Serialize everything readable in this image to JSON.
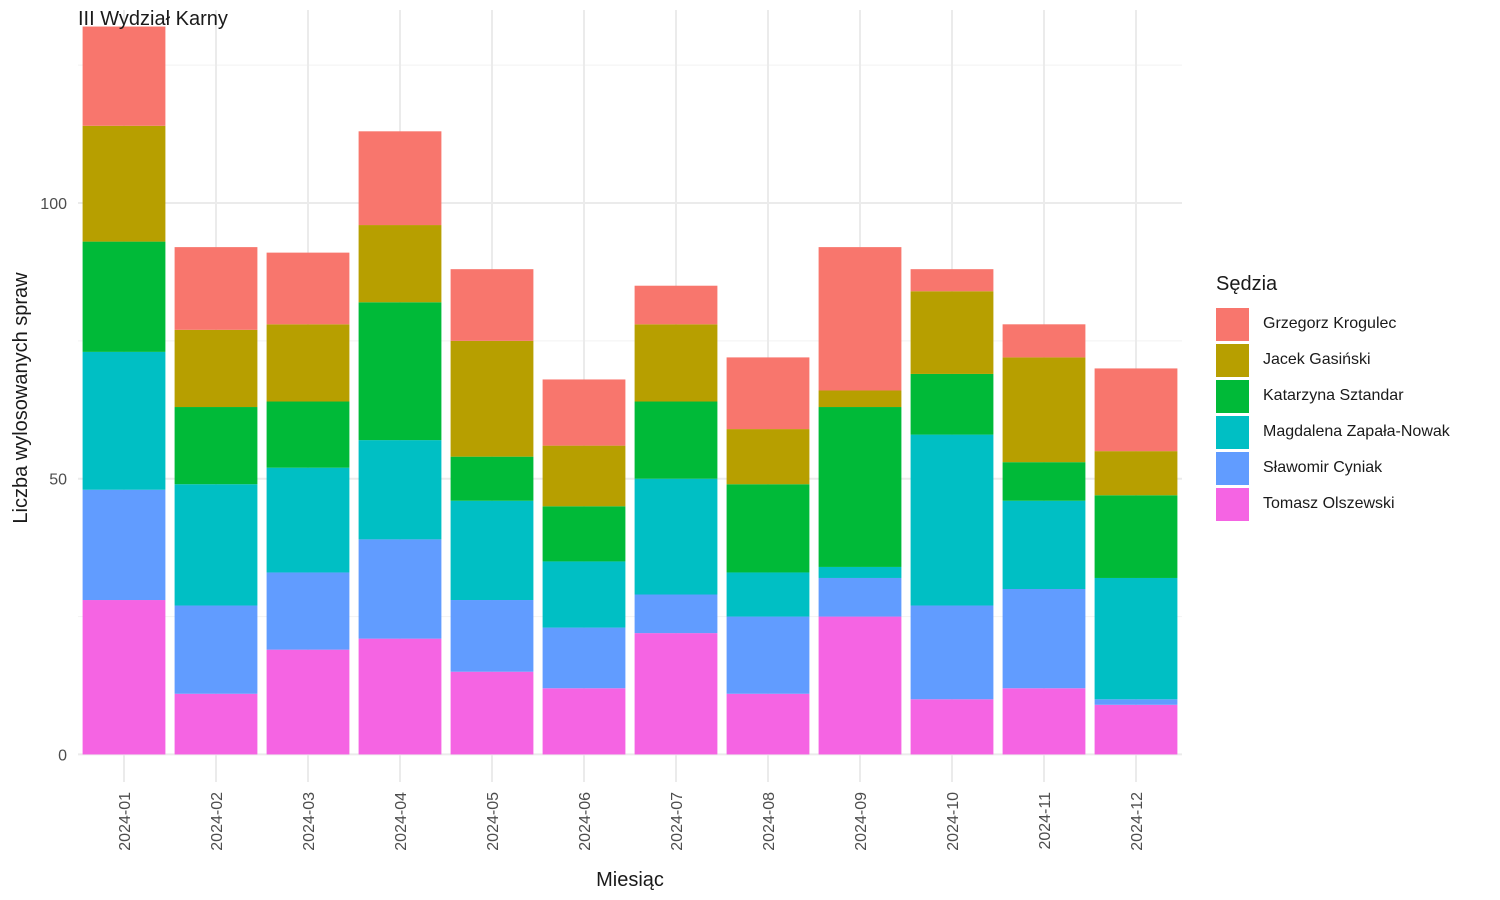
{
  "chart_data": {
    "type": "bar",
    "stacked": true,
    "subtitle": "III Wydział Karny",
    "xlabel": "Miesiąc",
    "ylabel": "Liczba wylosowanych spraw",
    "legend_title": "Sędzia",
    "legend_position": "right",
    "grid": true,
    "ylim": [
      -5,
      135
    ],
    "yticks": [
      0,
      50,
      100
    ],
    "categories": [
      "2024-01",
      "2024-02",
      "2024-03",
      "2024-04",
      "2024-05",
      "2024-06",
      "2024-07",
      "2024-08",
      "2024-09",
      "2024-10",
      "2024-11",
      "2024-12"
    ],
    "series": [
      {
        "name": "Tomasz Olszewski",
        "color": "#F564E3",
        "values": [
          28,
          11,
          19,
          21,
          15,
          12,
          22,
          11,
          25,
          10,
          12,
          9
        ]
      },
      {
        "name": "Sławomir Cyniak",
        "color": "#619CFF",
        "values": [
          20,
          16,
          14,
          18,
          13,
          11,
          7,
          14,
          7,
          17,
          18,
          1
        ]
      },
      {
        "name": "Magdalena Zapała-Nowak",
        "color": "#00BFC4",
        "values": [
          25,
          22,
          19,
          18,
          18,
          12,
          21,
          8,
          2,
          31,
          16,
          22
        ]
      },
      {
        "name": "Katarzyna Sztandar",
        "color": "#00BA38",
        "values": [
          20,
          14,
          12,
          25,
          8,
          10,
          14,
          16,
          29,
          11,
          7,
          15
        ]
      },
      {
        "name": "Jacek Gasiński",
        "color": "#B79F00",
        "values": [
          21,
          14,
          14,
          14,
          21,
          11,
          14,
          10,
          3,
          15,
          19,
          8
        ]
      },
      {
        "name": "Grzegorz Krogulec",
        "color": "#F8766D",
        "values": [
          18,
          15,
          13,
          17,
          13,
          12,
          7,
          13,
          26,
          4,
          6,
          15
        ]
      }
    ]
  }
}
